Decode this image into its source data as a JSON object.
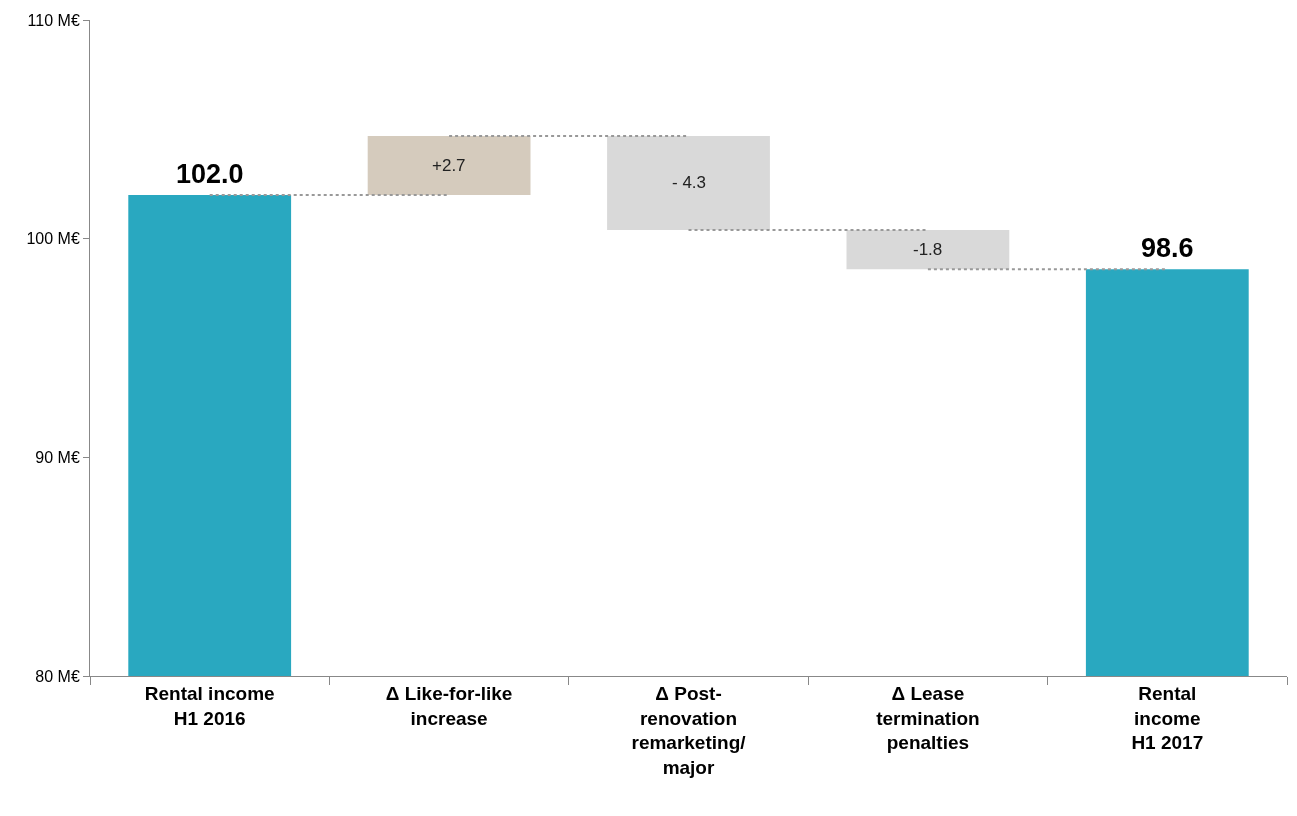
{
  "chart_data": {
    "type": "bar",
    "categories": [
      "Rental income\nH1 2016",
      "Δ Like-for-like\nincrease",
      "Δ Post-\nrenovation\nremarketing/\nmajor",
      "Δ Lease\ntermination\npenalties",
      "Rental\nincome\nH1 2017"
    ],
    "values": [
      22.0,
      2.7,
      -4.3,
      -1.8,
      18.6
    ],
    "base": [
      80,
      102.0,
      104.7,
      100.4,
      80
    ],
    "colors": [
      "#29a8c0",
      "#d5cbbd",
      "#d9d9d9",
      "#d9d9d9",
      "#29a8c0"
    ],
    "value_labels": [
      "102.0",
      "+2.7",
      "- 4.3",
      "-1.8",
      "98.6"
    ],
    "ylim": [
      80,
      110
    ],
    "yticks": [
      {
        "value": 80,
        "label": "80 M€"
      },
      {
        "value": 90,
        "label": "90 M€"
      },
      {
        "value": 100,
        "label": "100 M€"
      },
      {
        "value": 110,
        "label": "110 M€"
      }
    ],
    "series": [
      {
        "type": "line",
        "color": "#999999",
        "line_style": "dotted",
        "marker": "none",
        "values": [
          102.0,
          102.0,
          null,
          null,
          null
        ]
      },
      {
        "type": "line",
        "color": "#999999",
        "line_style": "dotted",
        "marker": "none",
        "values": [
          null,
          104.7,
          104.7,
          null,
          null
        ]
      },
      {
        "type": "line",
        "color": "#999999",
        "line_style": "dotted",
        "marker": "none",
        "values": [
          null,
          null,
          100.4,
          100.4,
          null
        ]
      },
      {
        "type": "line",
        "color": "#999999",
        "line_style": "dotted",
        "marker": "none",
        "values": [
          null,
          null,
          null,
          98.6,
          98.6
        ]
      }
    ]
  }
}
